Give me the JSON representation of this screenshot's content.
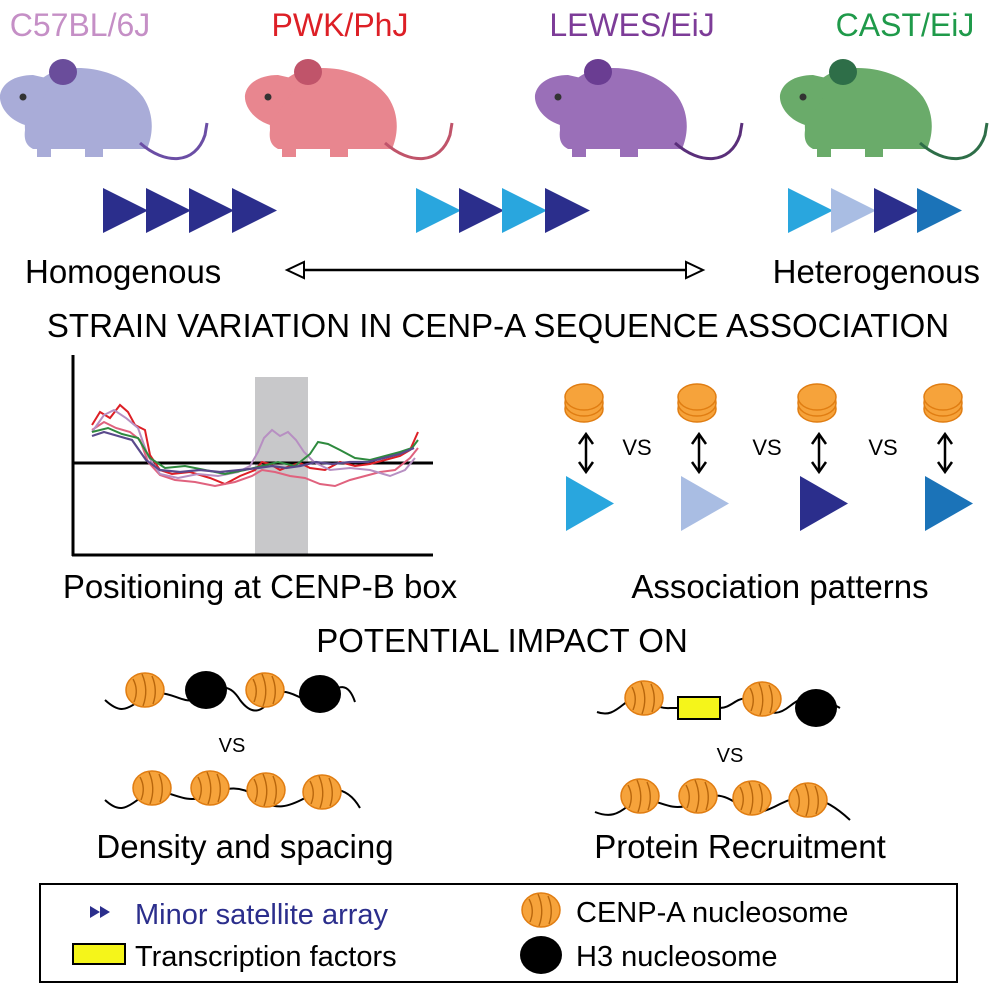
{
  "strains": [
    {
      "name": "C57BL/6J",
      "color": "#c58fc6",
      "body": "#a9acd8",
      "ear": "#6a4d9b",
      "tail": "#6b4ea5"
    },
    {
      "name": "PWK/PhJ",
      "color": "#dd1f26",
      "body": "#e8868f",
      "ear": "#c0546a",
      "tail": "#c0546a"
    },
    {
      "name": "LEWES/EiJ",
      "color": "#7d3c98",
      "body": "#9a6fb8",
      "ear": "#6a3d92",
      "tail": "#5a2f7a"
    },
    {
      "name": "CAST/EiJ",
      "color": "#1f9a4a",
      "body": "#6aab6a",
      "ear": "#2e6e48",
      "tail": "#2e6e48"
    }
  ],
  "arrays": {
    "homogenous": [
      "#2b2e8c",
      "#2b2e8c",
      "#2b2e8c",
      "#2b2e8c"
    ],
    "middle": [
      "#29a6de",
      "#2b2e8c",
      "#29a6de",
      "#2b2e8c"
    ],
    "heterogenous": [
      "#29a6de",
      "#a9bde3",
      "#2b2e8c",
      "#1b73b8"
    ]
  },
  "spectrum": {
    "left_label": "Homogenous",
    "right_label": "Heterogenous"
  },
  "section_title": "STRAIN VARIATION IN CENP-A SEQUENCE ASSOCIATION",
  "positioning_caption": "Positioning at CENP-B box",
  "association": {
    "vs_label": "VS",
    "triangle_colors": [
      "#29a6de",
      "#a9bde3",
      "#2b2e8c",
      "#1b73b8"
    ],
    "caption": "Association patterns"
  },
  "impact_title": "POTENTIAL IMPACT ON",
  "density": {
    "vs_label": "VS",
    "caption": "Density and spacing"
  },
  "recruitment": {
    "vs_label": "VS",
    "caption": "Protein Recruitment"
  },
  "legend": {
    "minor_satellite": "Minor satellite array",
    "transcription_factors": "Transcription factors",
    "cenpa": "CENP-A nucleosome",
    "h3": "H3 nucleosome"
  },
  "colors": {
    "cenpa_fill": "#f6a33b",
    "cenpa_stroke": "#e07d12",
    "h3_fill": "#000000",
    "tf_fill": "#f5f51a",
    "array_legend": "#2b2e8c",
    "band": "#c8c8ca"
  }
}
